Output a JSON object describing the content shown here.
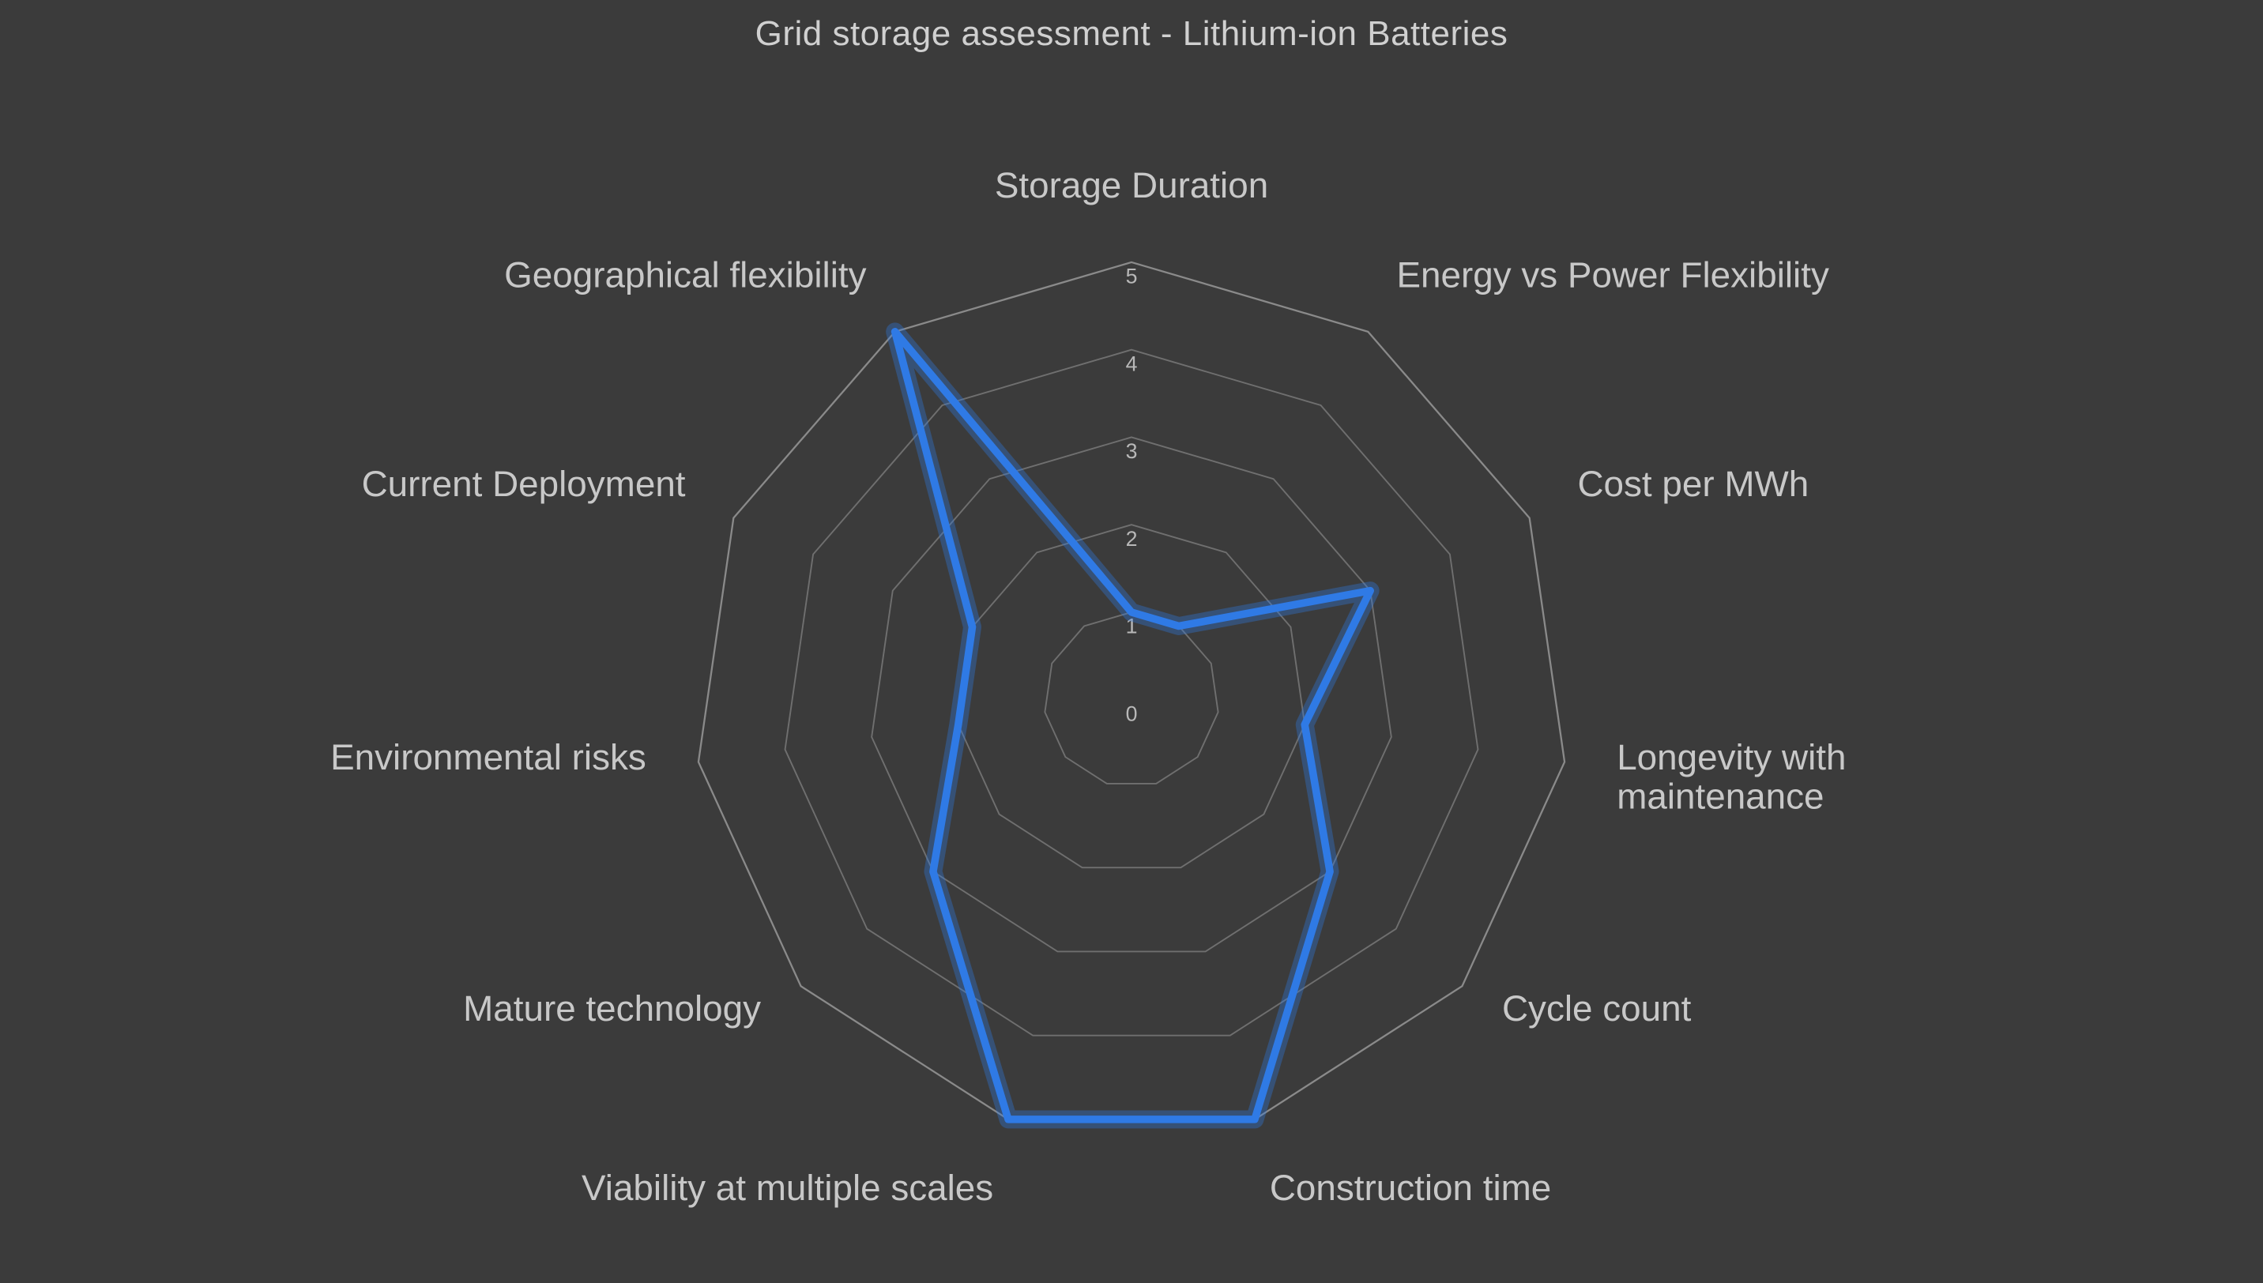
{
  "chart": {
    "type": "radar",
    "title": "Grid storage assessment - Lithium-ion Batteries",
    "background_color": "#3b3b3b",
    "title_color": "#d0d0d0",
    "title_fontsize": 44,
    "grid_color": "#6f6f6f",
    "grid_outer_color": "#8a8a8a",
    "tick_label_color": "#b8b8b8",
    "tick_label_fontsize": 14,
    "axis_label_color": "#c8c8c8",
    "axis_label_fontsize": 24,
    "series_color": "#2f7ae5",
    "series_stroke_width": 5,
    "series_glow_width": 12,
    "max_value": 5,
    "tick_step": 1,
    "ticks": [
      0,
      1,
      2,
      3,
      4,
      5
    ],
    "axes": [
      {
        "label": "Storage Duration",
        "value": 1
      },
      {
        "label": "Energy vs Power Flexibility",
        "value": 1
      },
      {
        "label": "Cost per MWh",
        "value": 3
      },
      {
        "label": "Longevity with maintenance",
        "value": 2
      },
      {
        "label": "Cycle count",
        "value": 3
      },
      {
        "label": "Construction time",
        "value": 5
      },
      {
        "label": "Viability at multiple scales",
        "value": 5
      },
      {
        "label": "Mature technology",
        "value": 3
      },
      {
        "label": "Environmental risks",
        "value": 2
      },
      {
        "label": "Current Deployment",
        "value": 2
      },
      {
        "label": "Geographical flexibility",
        "value": 5
      }
    ]
  }
}
